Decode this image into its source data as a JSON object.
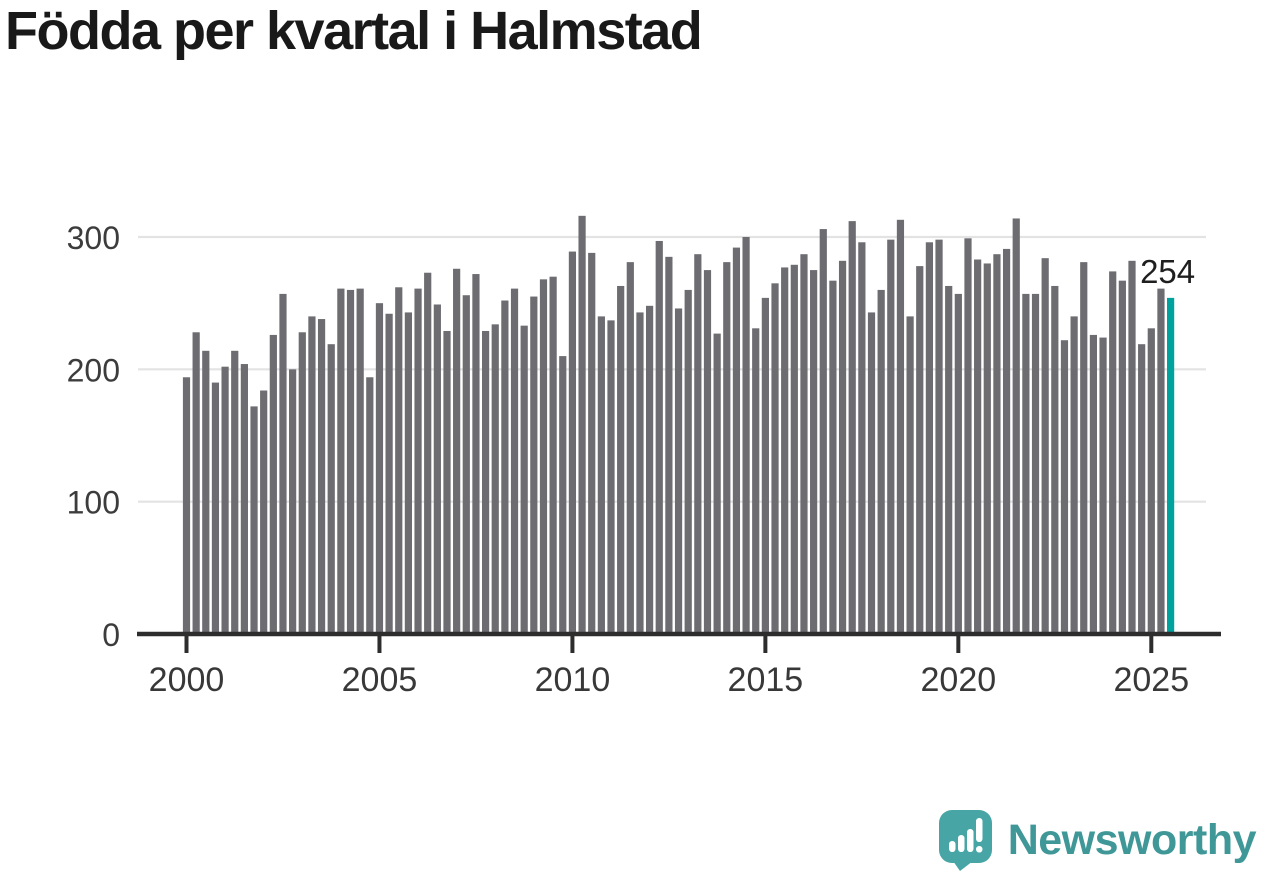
{
  "page": {
    "title": "Födda per kvartal i Halmstad"
  },
  "chart_data": {
    "type": "bar",
    "title": "Födda per kvartal i Halmstad",
    "xlabel": "",
    "ylabel": "",
    "ylim": [
      0,
      330
    ],
    "yticks": [
      0,
      100,
      200,
      300
    ],
    "y_tick_labels": [
      "0",
      "100",
      "200",
      "300"
    ],
    "x_tick_labels": [
      "2000",
      "2005",
      "2010",
      "2015",
      "2020",
      "2025"
    ],
    "x_tick_interval_quarters": 20,
    "grid": "horizontal",
    "legend": "none",
    "series": [
      {
        "name": "Födda per kvartal",
        "start_year": 2000,
        "start_quarter": "2000-Q1",
        "end_quarter": "2025-Q3",
        "values": [
          194,
          228,
          214,
          190,
          202,
          214,
          204,
          172,
          184,
          226,
          257,
          200,
          228,
          240,
          238,
          219,
          261,
          260,
          261,
          194,
          250,
          242,
          262,
          243,
          261,
          273,
          249,
          229,
          276,
          256,
          272,
          229,
          234,
          252,
          261,
          233,
          255,
          268,
          270,
          210,
          289,
          316,
          288,
          240,
          237,
          263,
          281,
          243,
          248,
          297,
          285,
          246,
          260,
          287,
          275,
          227,
          281,
          292,
          300,
          231,
          254,
          265,
          277,
          279,
          287,
          275,
          306,
          267,
          282,
          312,
          296,
          243,
          260,
          298,
          313,
          240,
          278,
          296,
          298,
          263,
          257,
          299,
          283,
          280,
          287,
          291,
          314,
          257,
          257,
          284,
          263,
          222,
          240,
          281,
          226,
          224,
          274,
          267,
          282,
          219,
          231,
          261,
          254
        ]
      }
    ],
    "highlight": {
      "index": 102,
      "quarter": "2025-Q3",
      "value": 254,
      "label": "254"
    },
    "colors": {
      "bar": "#6c6c71",
      "highlight": "#00a29d",
      "grid": "#e3e3e3",
      "axis": "#2d2d2d",
      "tick_text": "#3c3c3c",
      "title": "#191919",
      "annotation": "#1f1f1f"
    }
  },
  "footer": {
    "brand": "Newsworthy",
    "brand_color": "#3f9897",
    "icon": "newsworthy-speech-bubble-bar-chart-icon",
    "icon_color": "#47a6a5"
  }
}
